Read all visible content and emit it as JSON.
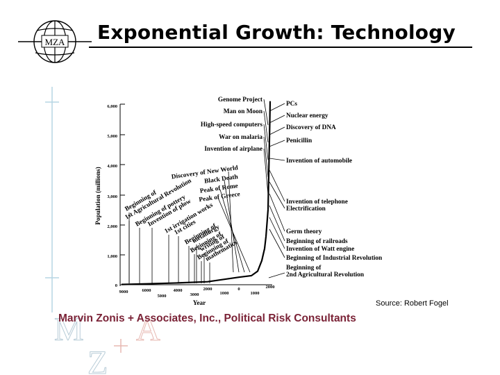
{
  "slide": {
    "title": "Exponential Growth: Technology",
    "logo_text": "MZA",
    "source": "Source: Robert Fogel",
    "company": "Marvin Zonis + Associates, Inc., Political Risk Consultants",
    "footer_mark": {
      "m": "M",
      "z": "Z",
      "a": "A"
    }
  },
  "chart_data": {
    "type": "line",
    "title": "",
    "xlabel": "Year",
    "ylabel": "Population (millions)",
    "yticks": [
      "6,000",
      "5,000",
      "4,000",
      "3,000",
      "2,000",
      "1,000",
      "0"
    ],
    "xticks_top": [
      "6000",
      "4000",
      "2000",
      "0",
      "2000"
    ],
    "xticks_bottom": [
      "9000",
      "5000",
      "3000",
      "1000",
      "1000"
    ],
    "ylim": [
      0,
      6000
    ],
    "series": [
      {
        "x": [
          -9000,
          -6000,
          -4000,
          -2000,
          0,
          1000,
          1500,
          1750,
          1850,
          1900,
          1950,
          1990,
          2000
        ],
        "y": [
          10,
          30,
          60,
          100,
          250,
          300,
          450,
          800,
          1200,
          1600,
          2500,
          5300,
          6100
        ]
      }
    ],
    "annotations_top_right": [
      "Genome Project",
      "Man on Moon",
      "High-speed computers",
      "War on malaria",
      "Invention of airplane"
    ],
    "annotations_right": [
      "PCs",
      "Nuclear energy",
      "Discovery of DNA",
      "Penicillin",
      "Invention of automobile",
      "Invention of telephone",
      "Electrification",
      "Germ theory",
      "Beginning of railroads",
      "Invention of Watt engine",
      "Beginning of Industrial Revolution",
      "Beginning of",
      "2nd Agricultural Revolution"
    ],
    "annotations_mid": [
      "Discovery of New World",
      "Black Death",
      "Peak of Rome",
      "Peak of Greece"
    ],
    "annotations_diagonal": [
      "Beginning of",
      "1st Agricultural Revolution",
      "Beginning of pottery",
      "Invention of plow",
      "1st irrigation works",
      "1st cities",
      "Beginning of",
      "metallurgy",
      "Beginning of",
      "writing of",
      "Beginning of",
      "mathematics"
    ]
  }
}
